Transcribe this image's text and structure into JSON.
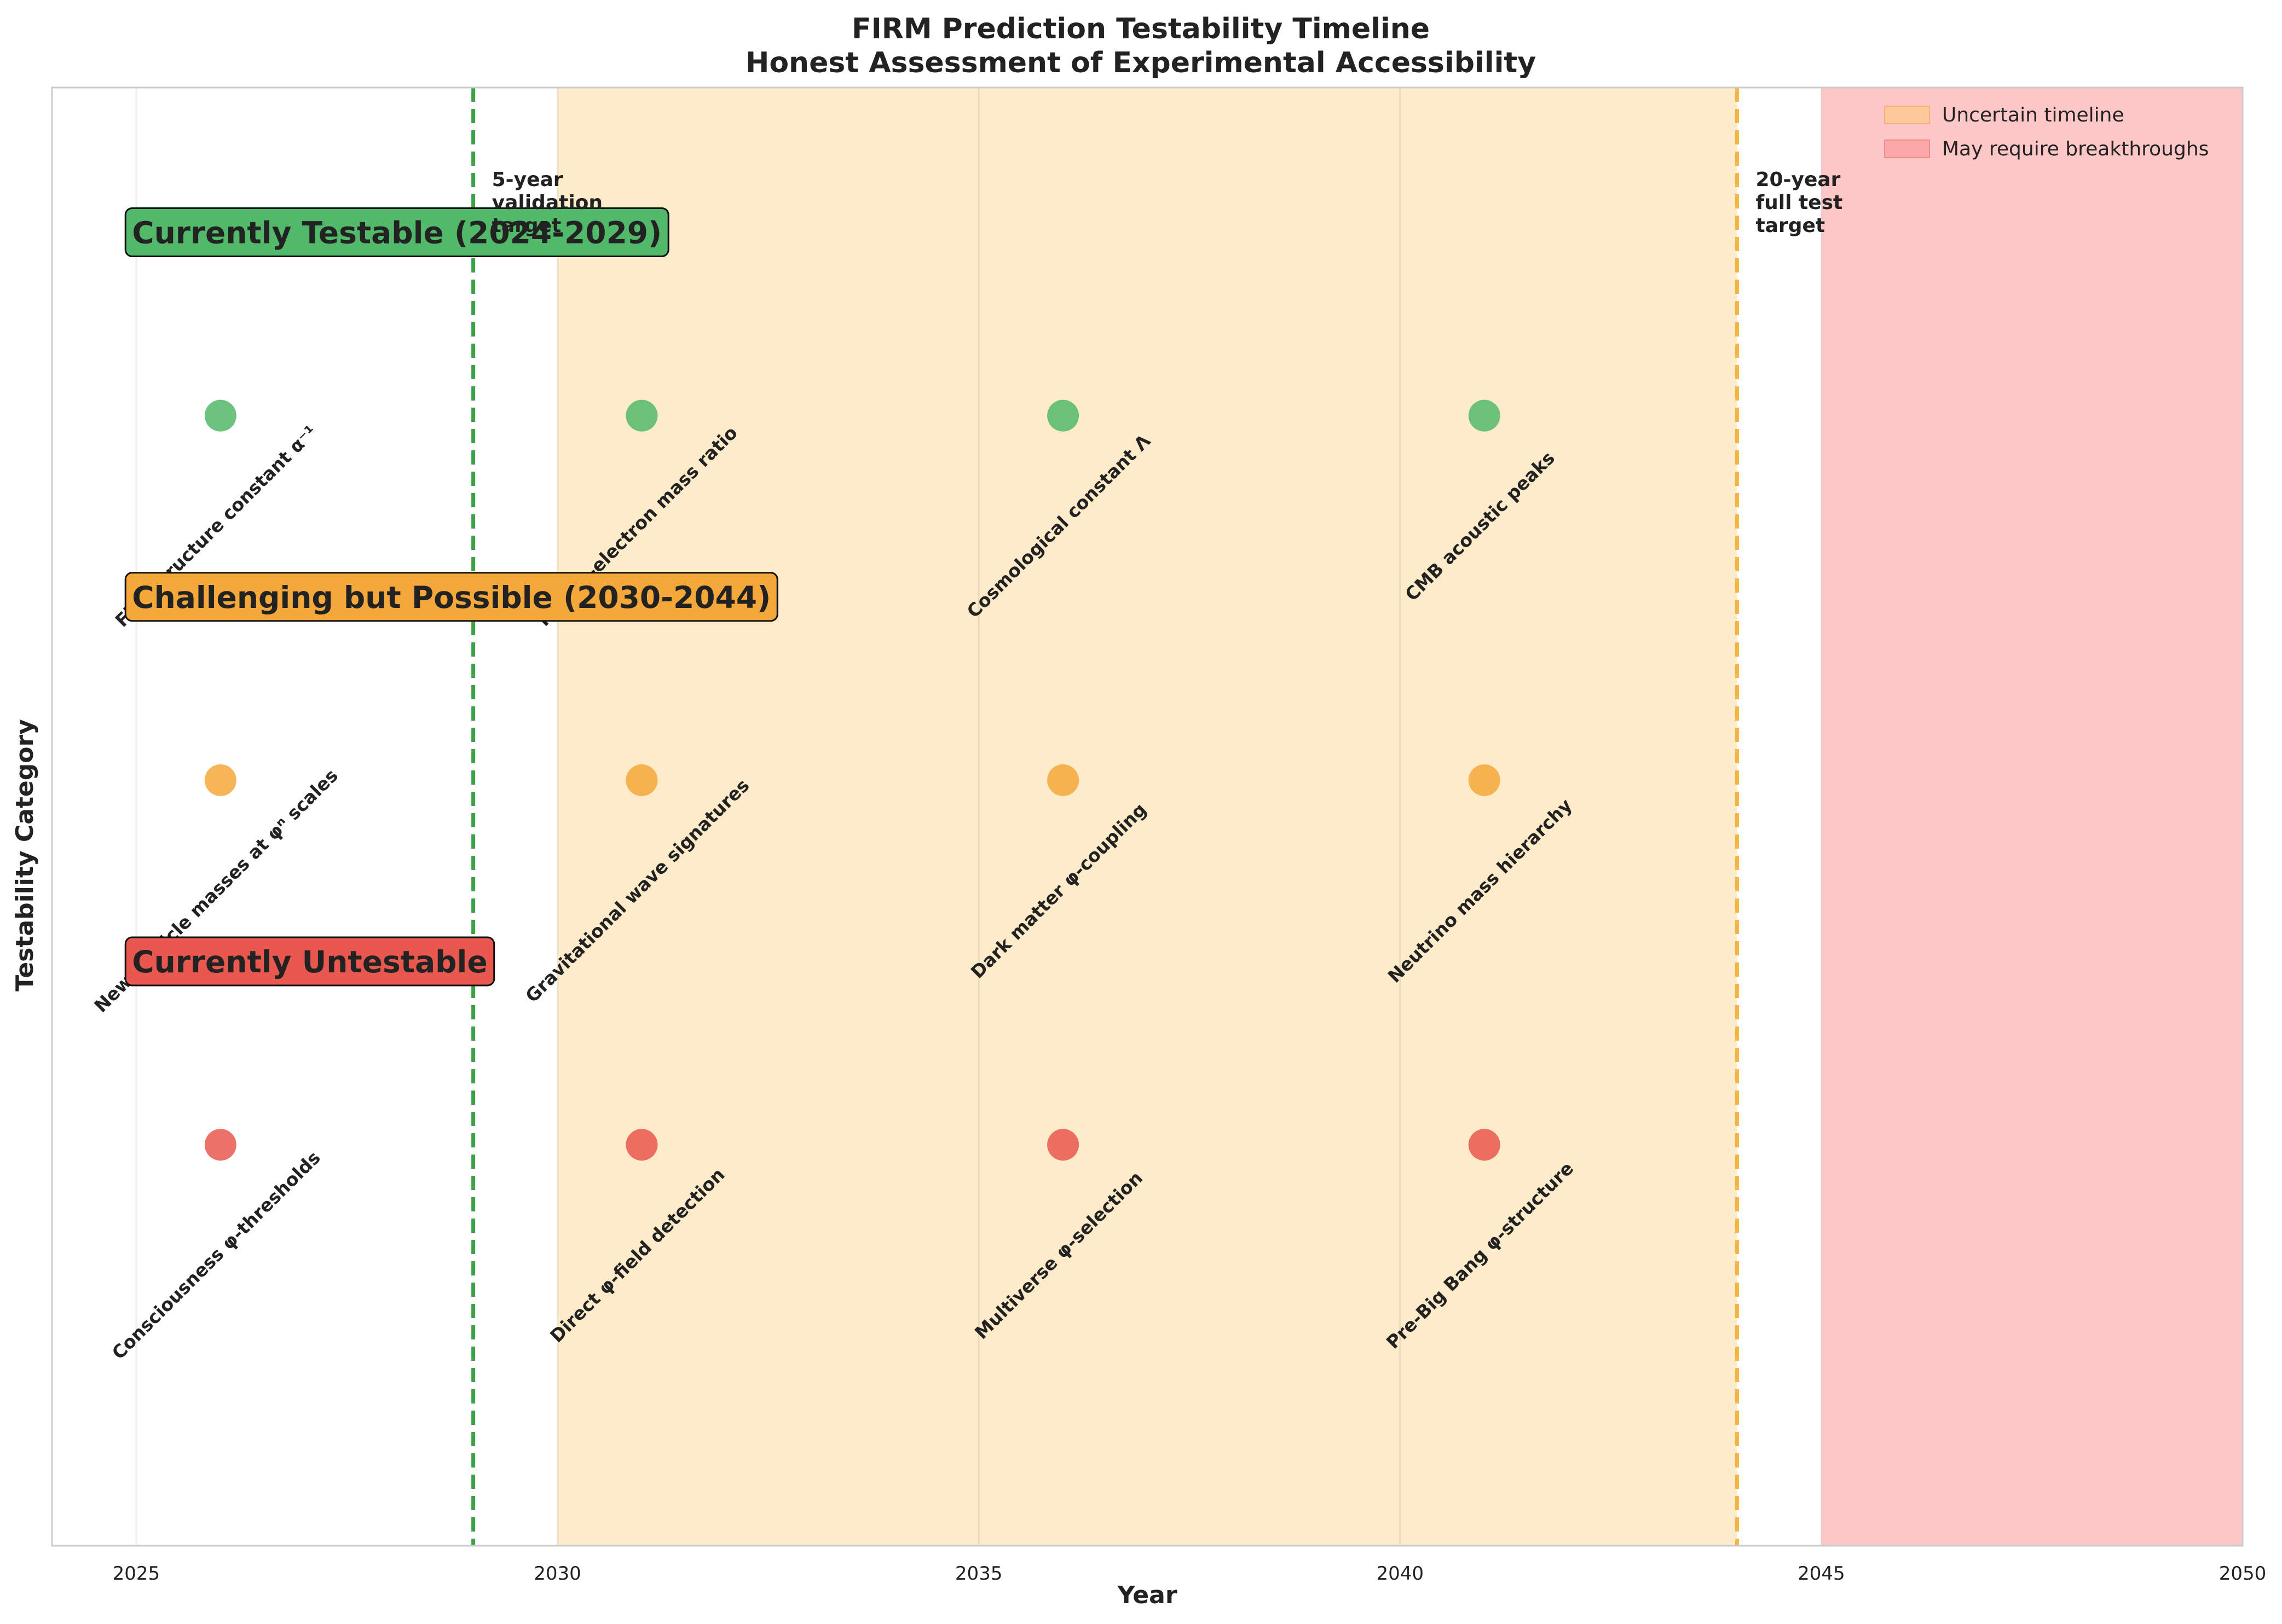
{
  "chart_data": {
    "type": "scatter",
    "title": "FIRM Prediction Testability Timeline",
    "subtitle": "Honest Assessment of Experimental Accessibility",
    "xlabel": "Year",
    "ylabel": "Testability Category",
    "xlim": [
      2024,
      2050
    ],
    "ylim": [
      -0.5,
      3.5
    ],
    "x_ticks": [
      "2025",
      "2030",
      "2035",
      "2040",
      "2045",
      "2050"
    ],
    "grid": true,
    "legend_position": "top-right",
    "colors": {
      "testable": "#52b96a",
      "challenging": "#f5a83a",
      "untestable": "#e8584f",
      "uncertain_band": "#fdebc9",
      "breakthrough_band": "#fdc7c7",
      "five_year_line": "#3aa346",
      "twenty_year_line": "#f5b642"
    },
    "categories": [
      {
        "name": "Currently Testable (2024-2029)",
        "y": 2.6,
        "label_y": 3.1,
        "color": "#52b96a"
      },
      {
        "name": "Challenging but Possible (2030-2044)",
        "y": 1.6,
        "label_y": 2.1,
        "color": "#f5a83a"
      },
      {
        "name": "Currently Untestable",
        "y": 0.6,
        "label_y": 1.1,
        "color": "#e8584f"
      }
    ],
    "predictions": [
      {
        "year": 2026,
        "category": 0,
        "label": "Fine structure constant α⁻¹"
      },
      {
        "year": 2031,
        "category": 0,
        "label": "Proton-electron mass ratio"
      },
      {
        "year": 2036,
        "category": 0,
        "label": "Cosmological constant Λ"
      },
      {
        "year": 2041,
        "category": 0,
        "label": "CMB acoustic peaks"
      },
      {
        "year": 2026,
        "category": 1,
        "label": "New particle masses at φⁿ scales"
      },
      {
        "year": 2031,
        "category": 1,
        "label": "Gravitational wave signatures"
      },
      {
        "year": 2036,
        "category": 1,
        "label": "Dark matter φ-coupling"
      },
      {
        "year": 2041,
        "category": 1,
        "label": "Neutrino mass hierarchy"
      },
      {
        "year": 2026,
        "category": 2,
        "label": "Consciousness φ-thresholds"
      },
      {
        "year": 2031,
        "category": 2,
        "label": "Direct φ-field detection"
      },
      {
        "year": 2036,
        "category": 2,
        "label": "Multiverse φ-selection"
      },
      {
        "year": 2041,
        "category": 2,
        "label": "Pre-Big Bang φ-structure"
      }
    ],
    "bands": [
      {
        "start": 2030,
        "end": 2044,
        "legend": "Uncertain timeline"
      },
      {
        "start": 2045,
        "end": 2050,
        "legend": "May require breakthroughs"
      }
    ],
    "milestones": [
      {
        "year": 2029,
        "text_lines": [
          "5-year",
          "validation",
          "target"
        ]
      },
      {
        "year": 2044,
        "text_lines": [
          "20-year",
          "full test",
          "target"
        ]
      }
    ]
  }
}
